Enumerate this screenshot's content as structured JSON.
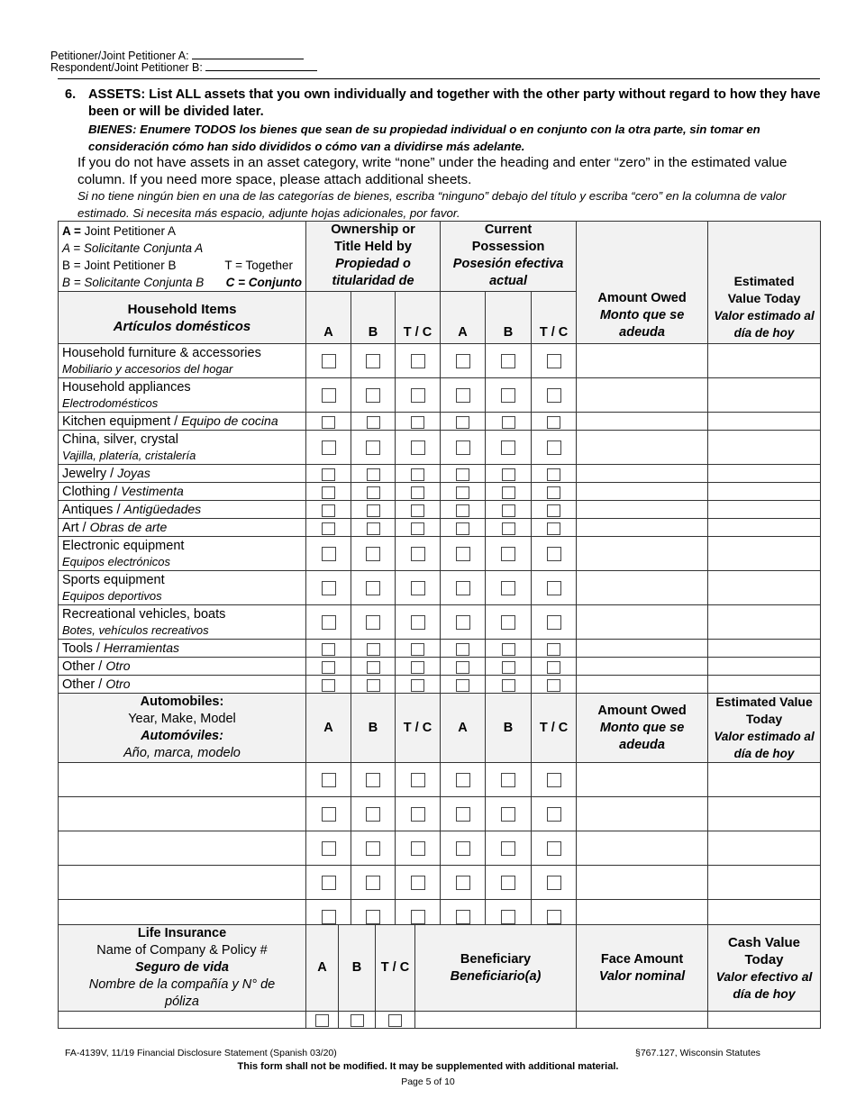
{
  "header": {
    "petitioner_a": "Petitioner/Joint Petitioner A:",
    "respondent_b": "Respondent/Joint Petitioner B:"
  },
  "section": {
    "number": "6.",
    "title_en": "ASSETS: List ALL assets that you own individually and together with the other party without regard to how they have been or will be divided later.",
    "title_es": "BIENES:   Enumere TODOS los bienes que sean de su propiedad individual o en conjunto con la otra parte, sin tomar en consideración cómo han sido divididos o cómo van a dividirse más adelante.",
    "instructions_en": "If you do not have assets in an asset category, write “none” under the heading and enter “zero” in the estimated value column.  If you need more space, please attach additional sheets.",
    "instructions_es": "Si no tiene ningún bien en una de las categorías de bienes, escriba “ninguno” debajo del título y escriba “cero” en la columna de valor estimado.  Si necesita más espacio, adjunte hojas adicionales, por favor."
  },
  "legend": {
    "a_en": "A = Joint Petitioner A",
    "a_es": "A = Solicitante Conjunta A",
    "b_en": "B = Joint Petitioner B",
    "t_en": "T = Together",
    "b_es": "B = Solicitante Conjunta B",
    "c_es": "C = Conjunto"
  },
  "columns": {
    "ownership": "Ownership or Title Held by",
    "ownership_es": "Propiedad o titularidad de",
    "possession": "Current Possession",
    "possession_es": "Posesión efectiva actual",
    "a": "A",
    "b": "B",
    "tc": "T / C",
    "amount_owed": "Amount Owed",
    "amount_owed_es": "Monto que se adeuda",
    "est_value": "Estimated Value Today",
    "est_value_es": "Valor estimado al día de hoy"
  },
  "household": {
    "title": "Household Items",
    "title_es": "Artículos domésticos",
    "rows": [
      {
        "en": "Household furniture & accessories",
        "es": "Mobiliario y accesorios del hogar",
        "tall": true
      },
      {
        "en": "Household appliances",
        "es": "Electrodomésticos",
        "tall": true
      },
      {
        "en": "Kitchen equipment",
        "es": "Equipo de cocina",
        "tall": false
      },
      {
        "en": "China, silver, crystal",
        "es": "Vajilla, platería, cristalería",
        "tall": true
      },
      {
        "en": "Jewelry",
        "es": "Joyas",
        "tall": false
      },
      {
        "en": "Clothing",
        "es": "Vestimenta",
        "tall": false
      },
      {
        "en": "Antiques",
        "es": "Antigüedades",
        "tall": false
      },
      {
        "en": "Art",
        "es": "Obras de arte",
        "tall": false
      },
      {
        "en": "Electronic equipment",
        "es": "Equipos electrónicos",
        "tall": true
      },
      {
        "en": "Sports equipment",
        "es": "Equipos deportivos",
        "tall": true
      },
      {
        "en": "Recreational vehicles, boats",
        "es": "Botes, vehículos recreativos",
        "tall": true
      },
      {
        "en": "Tools",
        "es": "Herramientas",
        "tall": false
      },
      {
        "en": "Other",
        "es": "Otro",
        "tall": false
      },
      {
        "en": "Other",
        "es": "Otro",
        "tall": false
      }
    ]
  },
  "automobiles": {
    "title": "Automobiles:",
    "subtitle": "Year, Make, Model",
    "title_es": "Automóviles:",
    "subtitle_es": "Año, marca, modelo",
    "row_count": 5
  },
  "life_insurance": {
    "title": "Life Insurance",
    "subtitle": "Name of Company & Policy #",
    "title_es": "Seguro de vida",
    "subtitle_es": "Nombre de la compañía y N° de póliza",
    "beneficiary": "Beneficiary",
    "beneficiary_es": "Beneficiario(a)",
    "face_amount": "Face Amount",
    "face_amount_es": "Valor nominal",
    "cash_value": "Cash Value Today",
    "cash_value_es": "Valor efectivo al día de hoy"
  },
  "footer": {
    "form_id": "FA-4139V, 11/19  Financial Disclosure Statement  (Spanish 03/20)",
    "statute": "§767.127, Wisconsin Statutes",
    "notice": "This form shall not be modified.  It may be supplemented with additional material.",
    "page": "Page 5 of 10"
  }
}
